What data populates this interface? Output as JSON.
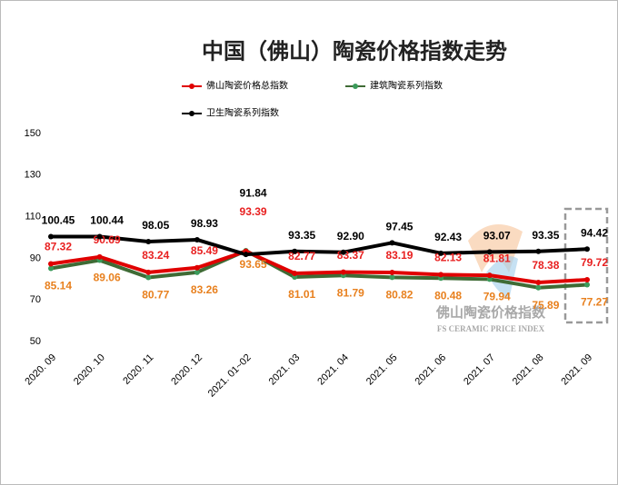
{
  "chart_data": {
    "type": "line",
    "title": "中国（佛山）陶瓷价格指数走势",
    "categories": [
      "2020. 09",
      "2020. 10",
      "2020. 11",
      "2020. 12",
      "2021. 01~02",
      "2021. 03",
      "2021. 04",
      "2021. 05",
      "2021. 06",
      "2021. 07",
      "2021. 08",
      "2021. 09"
    ],
    "series": [
      {
        "name": "佛山陶瓷价格总指数",
        "color": "#e00000",
        "marker_color": "#e00000",
        "label_color": "#e82020",
        "values": [
          87.32,
          90.69,
          83.24,
          85.49,
          93.39,
          82.77,
          83.37,
          83.19,
          82.13,
          81.81,
          78.38,
          79.72
        ],
        "value_labels": [
          "87.32",
          "90.69",
          "83.24",
          "85.49",
          "93.39",
          "82.77",
          "83.37",
          "83.19",
          "82.13",
          "81.81",
          "78.38",
          "79.72"
        ]
      },
      {
        "name": "建筑陶瓷系列指数",
        "color": "#3f6b35",
        "marker_color": "#3a9a5a",
        "label_color": "#e8801e",
        "values": [
          85.14,
          89.06,
          80.77,
          83.26,
          93.65,
          81.01,
          81.79,
          80.82,
          80.48,
          79.94,
          75.89,
          77.27
        ],
        "value_labels": [
          "85.14",
          "89.06",
          "80.77",
          "83.26",
          "93.65",
          "81.01",
          "81.79",
          "80.82",
          "80.48",
          "79.94",
          "75.89",
          "77.27"
        ]
      },
      {
        "name": "卫生陶瓷系列指数",
        "color": "#000000",
        "marker_color": "#000000",
        "label_color": "#000000",
        "values": [
          100.45,
          100.44,
          98.05,
          98.93,
          91.84,
          93.35,
          92.9,
          97.45,
          92.43,
          93.07,
          93.35,
          94.42
        ],
        "value_labels": [
          "100.45",
          "100.44",
          "98.05",
          "98.93",
          "91.84",
          "93.35",
          "92.90",
          "97.45",
          "92.43",
          "93.07",
          "93.35",
          "94.42"
        ]
      }
    ],
    "ylim": [
      50,
      150
    ],
    "yticks": [
      50,
      70,
      90,
      110,
      130,
      150
    ],
    "grid": false,
    "watermark": {
      "title": "佛山陶瓷价格指数",
      "subtitle": "FS CERAMIC PRICE INDEX"
    }
  }
}
